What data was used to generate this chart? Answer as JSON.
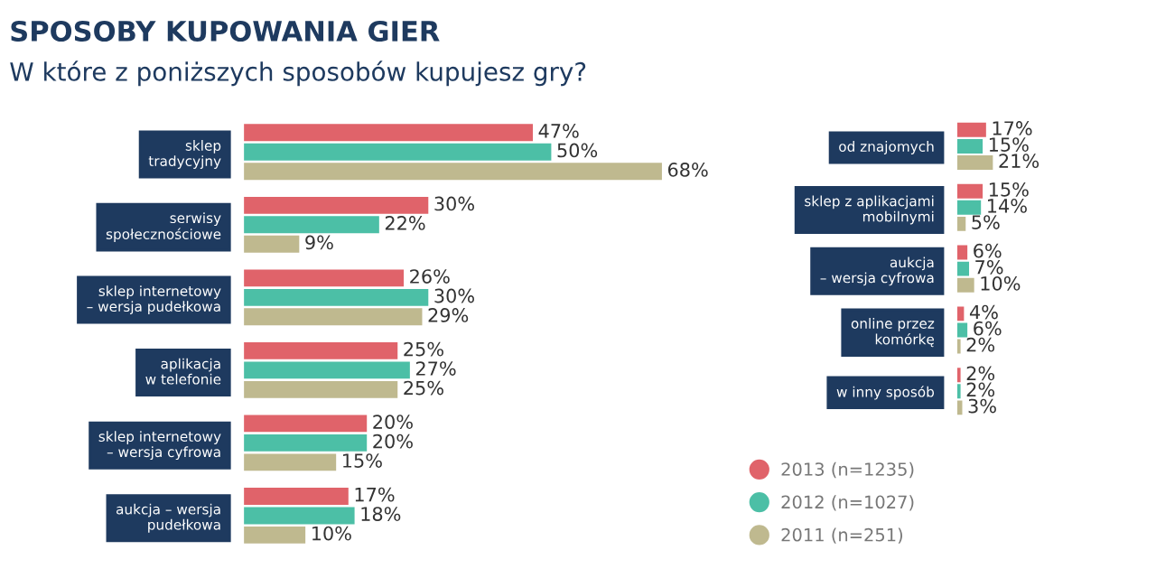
{
  "chart_data": [
    {
      "type": "bar",
      "orientation": "horizontal",
      "title": "SPOSOBY KUPOWANIA GIER",
      "subtitle": "W które z poniższych sposobów kupujesz gry?",
      "categories": [
        "sklep\ntradycyjny",
        "serwisy\nspołecznościowe",
        "sklep internetowy\n– wersja pudełkowa",
        "aplikacja\nw telefonie",
        "sklep internetowy\n– wersja cyfrowa",
        "aukcja – wersja\npudełkowa"
      ],
      "tick_labels": "y",
      "series": [
        {
          "color": "#e0636a",
          "values": [
            47,
            30,
            26,
            25,
            20,
            17
          ],
          "value_labels": [
            "47%",
            "30%",
            "26%",
            "25%",
            "20%",
            "17%"
          ]
        },
        {
          "color": "#4cbfa6",
          "values": [
            50,
            22,
            30,
            27,
            20,
            18
          ],
          "value_labels": [
            "50%",
            "22%",
            "30%",
            "27%",
            "20%",
            "18%"
          ]
        },
        {
          "color": "#bfb98f",
          "values": [
            68,
            9,
            29,
            25,
            15,
            10
          ],
          "value_labels": [
            "68%",
            "9%",
            "29%",
            "25%",
            "15%",
            "10%"
          ]
        }
      ]
    },
    {
      "type": "bar",
      "orientation": "horizontal",
      "categories": [
        "od znajomych",
        "sklep z aplikacjami\nmobilnymi",
        "aukcja\n– wersja cyfrowa",
        "online przez\nkomórkę",
        "w inny sposób"
      ],
      "tick_labels": "y",
      "legend": "bottom",
      "marker": "circle",
      "series": [
        {
          "name": "2013 (n=1235)",
          "color": "#e0636a",
          "values": [
            17,
            15,
            6,
            4,
            2
          ],
          "value_labels": [
            "17%",
            "15%",
            "6%",
            "4%",
            "2%"
          ]
        },
        {
          "name": "2012 (n=1027)",
          "color": "#4cbfa6",
          "values": [
            15,
            14,
            7,
            6,
            2
          ],
          "value_labels": [
            "15%",
            "14%",
            "7%",
            "6%",
            "2%"
          ]
        },
        {
          "name": "2011 (n=251)",
          "color": "#bfb98f",
          "values": [
            21,
            5,
            10,
            2,
            3
          ],
          "value_labels": [
            "21%",
            "5%",
            "10%",
            "2%",
            "3%"
          ]
        }
      ]
    }
  ]
}
